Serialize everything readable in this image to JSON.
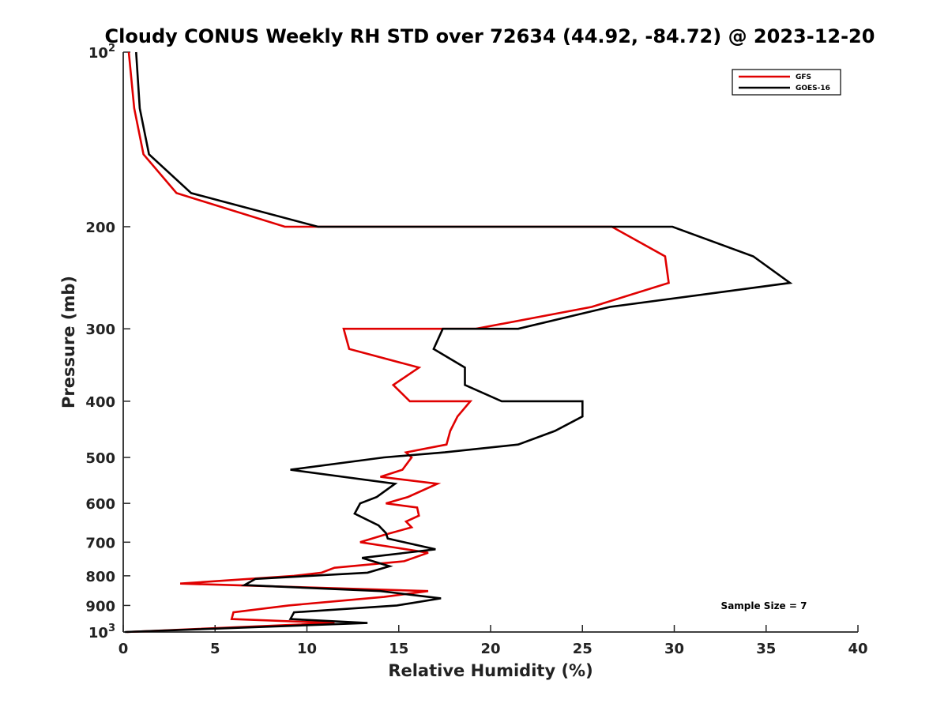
{
  "chart_data": {
    "type": "line",
    "title": "Cloudy CONUS Weekly RH STD over 72634 (44.92, -84.72) @ 2023-12-20",
    "xlabel": "Relative Humidity (%)",
    "ylabel": "Pressure (mb)",
    "xlim": [
      0,
      40
    ],
    "ylim": [
      1000,
      100
    ],
    "yscale": "log",
    "y_reversed": true,
    "x_ticks": [
      0,
      5,
      10,
      15,
      20,
      25,
      30,
      35,
      40
    ],
    "y_ticks": [
      {
        "value": 100,
        "label": "10",
        "sup": "2"
      },
      {
        "value": 200,
        "label": "200"
      },
      {
        "value": 300,
        "label": "300"
      },
      {
        "value": 400,
        "label": "400"
      },
      {
        "value": 500,
        "label": "500"
      },
      {
        "value": 600,
        "label": "600"
      },
      {
        "value": 700,
        "label": "700"
      },
      {
        "value": 800,
        "label": "800"
      },
      {
        "value": 900,
        "label": "900"
      },
      {
        "value": 1000,
        "label": "10",
        "sup": "3"
      }
    ],
    "legend_position": "top-right",
    "grid": false,
    "annotation": "Sample Size = 7",
    "series": [
      {
        "name": "GFS",
        "color": "#e00000",
        "points": [
          [
            0.3,
            100
          ],
          [
            0.6,
            125
          ],
          [
            1.1,
            150
          ],
          [
            2.9,
            175
          ],
          [
            8.8,
            200
          ],
          [
            26.6,
            200
          ],
          [
            29.5,
            225
          ],
          [
            29.7,
            250
          ],
          [
            25.5,
            275
          ],
          [
            19.2,
            300
          ],
          [
            12.0,
            300
          ],
          [
            12.3,
            325
          ],
          [
            16.1,
            350
          ],
          [
            14.7,
            375
          ],
          [
            15.6,
            400
          ],
          [
            18.9,
            400
          ],
          [
            18.2,
            425
          ],
          [
            17.8,
            450
          ],
          [
            17.6,
            475
          ],
          [
            15.4,
            490
          ],
          [
            15.7,
            500
          ],
          [
            15.2,
            525
          ],
          [
            14.0,
            540
          ],
          [
            17.1,
            555
          ],
          [
            15.5,
            585
          ],
          [
            14.3,
            600
          ],
          [
            16.0,
            610
          ],
          [
            16.1,
            630
          ],
          [
            15.4,
            645
          ],
          [
            15.7,
            660
          ],
          [
            14.2,
            680
          ],
          [
            12.9,
            700
          ],
          [
            14.8,
            715
          ],
          [
            16.6,
            730
          ],
          [
            15.3,
            755
          ],
          [
            11.5,
            775
          ],
          [
            10.8,
            790
          ],
          [
            9.3,
            800
          ],
          [
            3.1,
            825
          ],
          [
            16.6,
            850
          ],
          [
            14.2,
            870
          ],
          [
            9.0,
            900
          ],
          [
            6.0,
            925
          ],
          [
            5.9,
            950
          ],
          [
            11.5,
            965
          ],
          [
            0.2,
            1000
          ]
        ]
      },
      {
        "name": "GOES-16",
        "color": "#000000",
        "points": [
          [
            0.7,
            100
          ],
          [
            0.9,
            125
          ],
          [
            1.4,
            150
          ],
          [
            3.7,
            175
          ],
          [
            10.6,
            200
          ],
          [
            29.9,
            200
          ],
          [
            34.3,
            225
          ],
          [
            36.3,
            250
          ],
          [
            26.5,
            275
          ],
          [
            21.5,
            300
          ],
          [
            17.4,
            300
          ],
          [
            16.9,
            325
          ],
          [
            18.6,
            350
          ],
          [
            18.6,
            375
          ],
          [
            20.6,
            400
          ],
          [
            25.0,
            400
          ],
          [
            25.0,
            425
          ],
          [
            23.5,
            450
          ],
          [
            21.5,
            475
          ],
          [
            17.5,
            490
          ],
          [
            14.2,
            500
          ],
          [
            9.1,
            525
          ],
          [
            14.8,
            555
          ],
          [
            13.8,
            585
          ],
          [
            12.9,
            600
          ],
          [
            12.6,
            625
          ],
          [
            13.9,
            655
          ],
          [
            14.3,
            675
          ],
          [
            14.4,
            690
          ],
          [
            17.0,
            720
          ],
          [
            13.0,
            745
          ],
          [
            14.5,
            770
          ],
          [
            13.3,
            790
          ],
          [
            7.2,
            810
          ],
          [
            6.6,
            830
          ],
          [
            14.0,
            850
          ],
          [
            17.3,
            875
          ],
          [
            14.9,
            900
          ],
          [
            9.3,
            925
          ],
          [
            9.1,
            950
          ],
          [
            13.3,
            965
          ],
          [
            0.1,
            1000
          ]
        ]
      }
    ]
  }
}
